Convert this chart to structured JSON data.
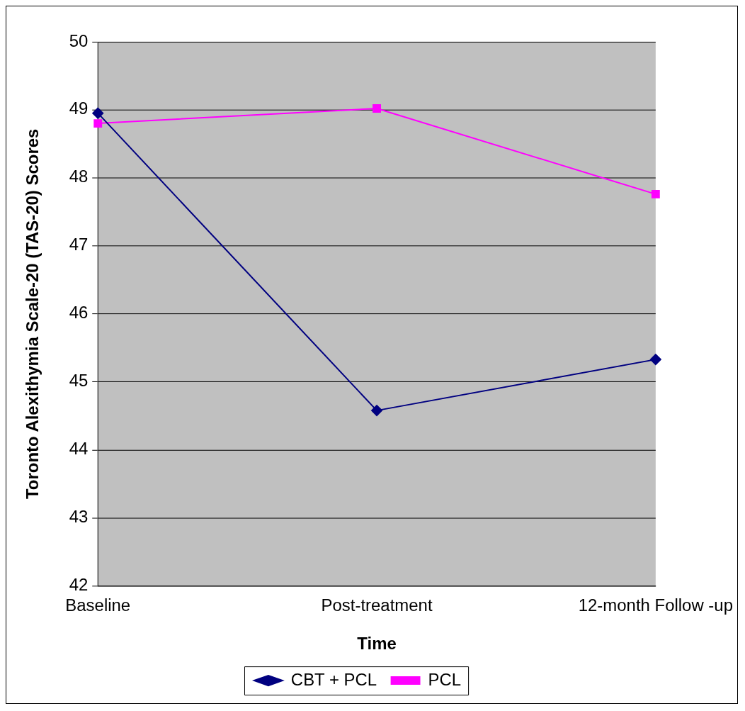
{
  "chart_data": {
    "type": "line",
    "xlabel": "Time",
    "ylabel": "Toronto Alexithymia Scale-20 (TAS-20) Scores",
    "categories": [
      "Baseline",
      "Post-treatment",
      "12-month Follow -up"
    ],
    "series": [
      {
        "name": "CBT + PCL",
        "color": "#000080",
        "marker": "diamond",
        "values": [
          48.95,
          44.58,
          45.33
        ]
      },
      {
        "name": "PCL",
        "color": "#ff00ff",
        "marker": "square",
        "values": [
          48.8,
          49.02,
          47.76
        ]
      }
    ],
    "ylim": [
      42,
      50
    ],
    "yticks": [
      42,
      43,
      44,
      45,
      46,
      47,
      48,
      49,
      50
    ],
    "grid": "y",
    "legend": "bottom",
    "line_style": "solid"
  }
}
